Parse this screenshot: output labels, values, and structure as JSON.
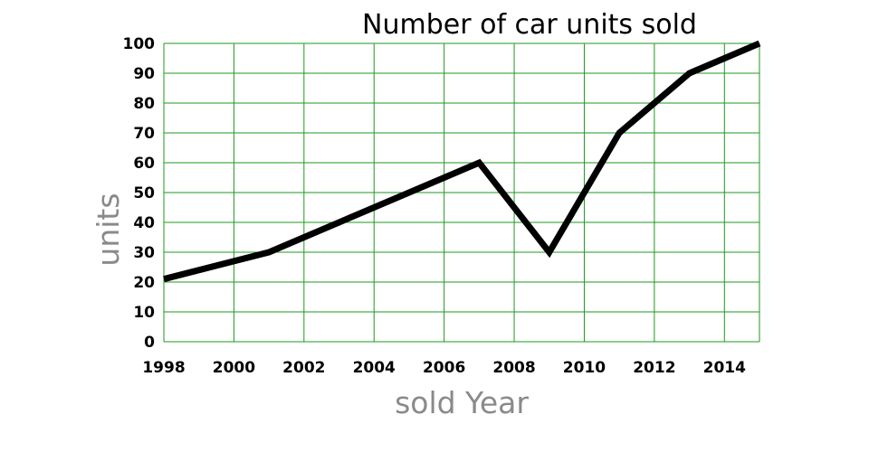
{
  "chart_data": {
    "type": "line",
    "title": "Number of car units sold",
    "xlabel": "sold Year",
    "ylabel": "units",
    "xlim": [
      1998,
      2015
    ],
    "ylim": [
      0,
      100
    ],
    "x_ticks": [
      "1998",
      "2000",
      "2002",
      "2004",
      "2006",
      "2008",
      "2010",
      "2012",
      "2014"
    ],
    "y_ticks": [
      "0",
      "10",
      "20",
      "30",
      "40",
      "50",
      "60",
      "70",
      "80",
      "90",
      "100"
    ],
    "grid": true,
    "grid_color": "#1e9a1e",
    "line_color": "#000000",
    "series": [
      {
        "x": [
          1998,
          2001,
          2007,
          2009,
          2011,
          2013,
          2015
        ],
        "y": [
          21,
          30,
          60,
          30,
          70,
          90,
          100
        ]
      }
    ]
  }
}
